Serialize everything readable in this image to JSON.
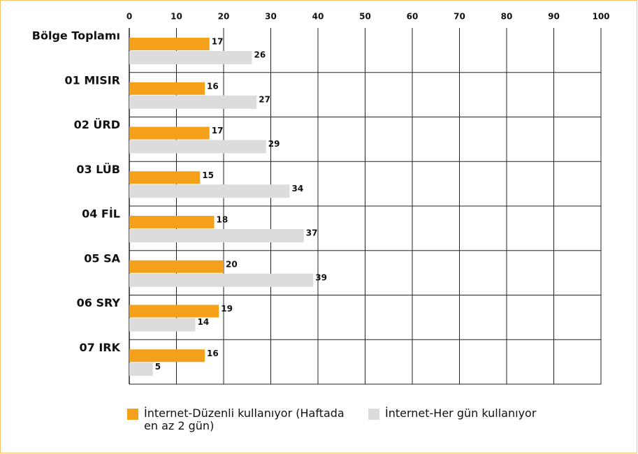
{
  "chart_data": {
    "type": "bar",
    "orientation": "horizontal",
    "categories": [
      "Bölge Toplamı",
      "01 MISIR",
      "02 ÜRD",
      "03 LÜB",
      "04 FİL",
      "05 SA",
      "06 SRY",
      "07 IRK"
    ],
    "series": [
      {
        "name": "İnternet-Düzenli kullanıyor (Haftada en az 2 gün)",
        "color": "#f5a01a",
        "values": [
          17,
          16,
          17,
          15,
          18,
          20,
          19,
          16
        ]
      },
      {
        "name": "İnternet-Her gün kullanıyor",
        "color": "#dcdcdc",
        "values": [
          26,
          27,
          29,
          34,
          37,
          39,
          14,
          5
        ]
      }
    ],
    "xlim": [
      0,
      100
    ],
    "xticks": [
      0,
      10,
      20,
      30,
      40,
      50,
      60,
      70,
      80,
      90,
      100
    ],
    "grid": true,
    "legend": "bottom"
  }
}
